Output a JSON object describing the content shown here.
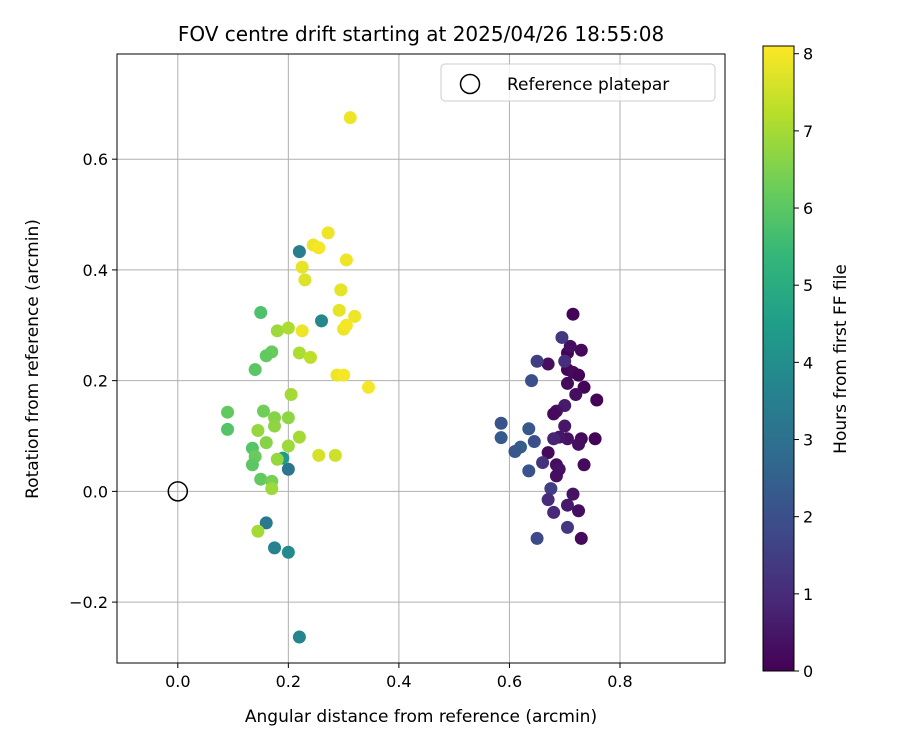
{
  "chart_data": {
    "type": "scatter",
    "title": "FOV centre drift starting at 2025/04/26 18:55:08",
    "xlabel": "Angular distance from reference (arcmin)",
    "ylabel": "Rotation from reference (arcmin)",
    "xlim": [
      -0.11,
      0.99
    ],
    "ylim": [
      -0.31,
      0.79
    ],
    "x_ticks": [
      0.0,
      0.2,
      0.4,
      0.6,
      0.8
    ],
    "x_tick_labels": [
      "0.0",
      "0.2",
      "0.4",
      "0.6",
      "0.8"
    ],
    "y_ticks": [
      -0.2,
      0.0,
      0.2,
      0.4,
      0.6
    ],
    "y_tick_labels": [
      "−0.2",
      "0.0",
      "0.2",
      "0.4",
      "0.6"
    ],
    "grid": true,
    "legend": {
      "position": "top-right",
      "entries": [
        "Reference platepar"
      ]
    },
    "reference_point": {
      "x": 0.0,
      "y": 0.0
    },
    "colorbar": {
      "label": "Hours from first FF file",
      "range": [
        0,
        8.1
      ],
      "ticks": [
        0,
        1,
        2,
        3,
        4,
        5,
        6,
        7,
        8
      ],
      "tick_labels": [
        "0",
        "1",
        "2",
        "3",
        "4",
        "5",
        "6",
        "7",
        "8"
      ],
      "colormap": "viridis",
      "colormap_stops": [
        "#440154",
        "#482878",
        "#3e4989",
        "#31688e",
        "#26828e",
        "#1f9e89",
        "#35b779",
        "#6ece58",
        "#b5de2b",
        "#fde725"
      ]
    },
    "points": [
      {
        "x": 0.715,
        "y": 0.32,
        "t": 0.1
      },
      {
        "x": 0.73,
        "y": 0.255,
        "t": 0.2
      },
      {
        "x": 0.705,
        "y": 0.25,
        "t": 0.1
      },
      {
        "x": 0.71,
        "y": 0.262,
        "t": 0.3
      },
      {
        "x": 0.705,
        "y": 0.22,
        "t": 0.1
      },
      {
        "x": 0.715,
        "y": 0.215,
        "t": 0.2
      },
      {
        "x": 0.725,
        "y": 0.21,
        "t": 0.1
      },
      {
        "x": 0.705,
        "y": 0.195,
        "t": 0.2
      },
      {
        "x": 0.735,
        "y": 0.188,
        "t": 0.1
      },
      {
        "x": 0.72,
        "y": 0.175,
        "t": 0.3
      },
      {
        "x": 0.758,
        "y": 0.165,
        "t": 0.1
      },
      {
        "x": 0.7,
        "y": 0.155,
        "t": 0.6
      },
      {
        "x": 0.685,
        "y": 0.145,
        "t": 0.4
      },
      {
        "x": 0.68,
        "y": 0.14,
        "t": 0.2
      },
      {
        "x": 0.67,
        "y": 0.23,
        "t": 0.3
      },
      {
        "x": 0.7,
        "y": 0.118,
        "t": 0.5
      },
      {
        "x": 0.73,
        "y": 0.095,
        "t": 0.2
      },
      {
        "x": 0.755,
        "y": 0.095,
        "t": 0.1
      },
      {
        "x": 0.725,
        "y": 0.085,
        "t": 0.3
      },
      {
        "x": 0.705,
        "y": 0.095,
        "t": 0.4
      },
      {
        "x": 0.69,
        "y": 0.098,
        "t": 0.5
      },
      {
        "x": 0.68,
        "y": 0.095,
        "t": 0.8
      },
      {
        "x": 0.67,
        "y": 0.07,
        "t": 0.2
      },
      {
        "x": 0.685,
        "y": 0.048,
        "t": 0.3
      },
      {
        "x": 0.69,
        "y": 0.04,
        "t": 0.4
      },
      {
        "x": 0.735,
        "y": 0.048,
        "t": 0.2
      },
      {
        "x": 0.685,
        "y": 0.028,
        "t": 0.3
      },
      {
        "x": 0.66,
        "y": 0.052,
        "t": 1.2
      },
      {
        "x": 0.675,
        "y": 0.005,
        "t": 1.5
      },
      {
        "x": 0.715,
        "y": -0.005,
        "t": 0.4
      },
      {
        "x": 0.67,
        "y": -0.015,
        "t": 1.0
      },
      {
        "x": 0.705,
        "y": -0.025,
        "t": 0.6
      },
      {
        "x": 0.725,
        "y": -0.035,
        "t": 0.3
      },
      {
        "x": 0.68,
        "y": -0.038,
        "t": 0.9
      },
      {
        "x": 0.705,
        "y": -0.065,
        "t": 1.3
      },
      {
        "x": 0.73,
        "y": -0.085,
        "t": 0.2
      },
      {
        "x": 0.65,
        "y": -0.085,
        "t": 1.8
      },
      {
        "x": 0.695,
        "y": 0.278,
        "t": 1.4
      },
      {
        "x": 0.65,
        "y": 0.235,
        "t": 1.5
      },
      {
        "x": 0.7,
        "y": 0.235,
        "t": 1.1
      },
      {
        "x": 0.64,
        "y": 0.2,
        "t": 2.0
      },
      {
        "x": 0.585,
        "y": 0.123,
        "t": 2.1
      },
      {
        "x": 0.635,
        "y": 0.113,
        "t": 2.2
      },
      {
        "x": 0.585,
        "y": 0.097,
        "t": 2.3
      },
      {
        "x": 0.645,
        "y": 0.09,
        "t": 2.0
      },
      {
        "x": 0.62,
        "y": 0.08,
        "t": 2.4
      },
      {
        "x": 0.61,
        "y": 0.072,
        "t": 2.2
      },
      {
        "x": 0.635,
        "y": 0.037,
        "t": 2.1
      },
      {
        "x": 0.22,
        "y": 0.433,
        "t": 3.5
      },
      {
        "x": 0.26,
        "y": 0.308,
        "t": 3.8
      },
      {
        "x": 0.2,
        "y": 0.04,
        "t": 3.2
      },
      {
        "x": 0.16,
        "y": -0.057,
        "t": 3.3
      },
      {
        "x": 0.175,
        "y": -0.102,
        "t": 3.6
      },
      {
        "x": 0.2,
        "y": -0.11,
        "t": 3.9
      },
      {
        "x": 0.22,
        "y": -0.263,
        "t": 3.7
      },
      {
        "x": 0.19,
        "y": 0.06,
        "t": 4.4
      },
      {
        "x": 0.15,
        "y": 0.323,
        "t": 5.8
      },
      {
        "x": 0.17,
        "y": 0.252,
        "t": 6.2
      },
      {
        "x": 0.16,
        "y": 0.245,
        "t": 6.1
      },
      {
        "x": 0.14,
        "y": 0.22,
        "t": 6.0
      },
      {
        "x": 0.09,
        "y": 0.143,
        "t": 6.1
      },
      {
        "x": 0.09,
        "y": 0.112,
        "t": 5.9
      },
      {
        "x": 0.155,
        "y": 0.145,
        "t": 6.3
      },
      {
        "x": 0.135,
        "y": 0.078,
        "t": 5.9
      },
      {
        "x": 0.14,
        "y": 0.063,
        "t": 6.2
      },
      {
        "x": 0.135,
        "y": 0.048,
        "t": 6.0
      },
      {
        "x": 0.15,
        "y": 0.022,
        "t": 6.1
      },
      {
        "x": 0.17,
        "y": 0.018,
        "t": 6.4
      },
      {
        "x": 0.175,
        "y": 0.133,
        "t": 6.6
      },
      {
        "x": 0.2,
        "y": 0.133,
        "t": 6.7
      },
      {
        "x": 0.175,
        "y": 0.118,
        "t": 6.7
      },
      {
        "x": 0.145,
        "y": 0.11,
        "t": 6.8
      },
      {
        "x": 0.16,
        "y": 0.088,
        "t": 6.6
      },
      {
        "x": 0.2,
        "y": 0.082,
        "t": 6.9
      },
      {
        "x": 0.22,
        "y": 0.098,
        "t": 7.0
      },
      {
        "x": 0.18,
        "y": 0.058,
        "t": 6.8
      },
      {
        "x": 0.17,
        "y": 0.005,
        "t": 6.9
      },
      {
        "x": 0.145,
        "y": -0.072,
        "t": 7.0
      },
      {
        "x": 0.205,
        "y": 0.175,
        "t": 7.0
      },
      {
        "x": 0.18,
        "y": 0.29,
        "t": 6.9
      },
      {
        "x": 0.2,
        "y": 0.295,
        "t": 7.1
      },
      {
        "x": 0.22,
        "y": 0.25,
        "t": 7.1
      },
      {
        "x": 0.24,
        "y": 0.242,
        "t": 7.3
      },
      {
        "x": 0.255,
        "y": 0.065,
        "t": 7.6
      },
      {
        "x": 0.285,
        "y": 0.065,
        "t": 7.5
      },
      {
        "x": 0.225,
        "y": 0.29,
        "t": 7.9
      },
      {
        "x": 0.225,
        "y": 0.405,
        "t": 7.8
      },
      {
        "x": 0.23,
        "y": 0.382,
        "t": 7.7
      },
      {
        "x": 0.245,
        "y": 0.445,
        "t": 7.9
      },
      {
        "x": 0.255,
        "y": 0.44,
        "t": 8.0
      },
      {
        "x": 0.272,
        "y": 0.467,
        "t": 7.9
      },
      {
        "x": 0.305,
        "y": 0.418,
        "t": 7.9
      },
      {
        "x": 0.295,
        "y": 0.364,
        "t": 7.8
      },
      {
        "x": 0.292,
        "y": 0.327,
        "t": 7.8
      },
      {
        "x": 0.32,
        "y": 0.316,
        "t": 7.9
      },
      {
        "x": 0.3,
        "y": 0.293,
        "t": 7.9
      },
      {
        "x": 0.305,
        "y": 0.3,
        "t": 8.0
      },
      {
        "x": 0.288,
        "y": 0.21,
        "t": 7.9
      },
      {
        "x": 0.3,
        "y": 0.21,
        "t": 8.0
      },
      {
        "x": 0.345,
        "y": 0.188,
        "t": 8.0
      },
      {
        "x": 0.312,
        "y": 0.675,
        "t": 7.9
      }
    ]
  }
}
